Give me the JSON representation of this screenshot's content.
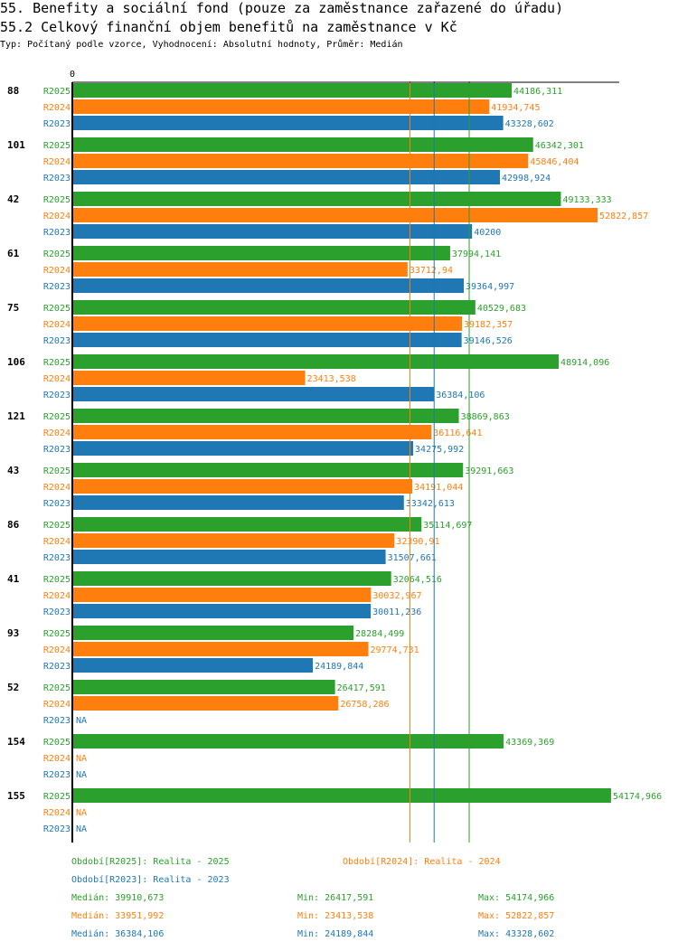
{
  "header": {
    "title": "55. Benefity a sociální fond (pouze za zaměstnance zařazené do úřadu)",
    "subtitle": "55.2 Celkový finanční objem benefitů na zaměstnance v Kč",
    "info": "Typ: Počítaný podle vzorce, Vyhodnocení: Absolutní hodnoty, Průměr: Medián"
  },
  "colors": {
    "R2025": "#2ca02c",
    "R2024": "#ff7f0e",
    "R2023": "#1f77b4"
  },
  "chart_data": {
    "type": "bar",
    "orientation": "horizontal",
    "axis_zero_label": "0",
    "xlim": [
      0,
      55000
    ],
    "series_names": [
      "R2025",
      "R2024",
      "R2023"
    ],
    "groups": [
      {
        "id": "88",
        "values": [
          44186.311,
          41934.745,
          43328.602
        ],
        "labels": [
          "44186,311",
          "41934,745",
          "43328,602"
        ]
      },
      {
        "id": "101",
        "values": [
          46342.301,
          45846.404,
          42998.924
        ],
        "labels": [
          "46342,301",
          "45846,404",
          "42998,924"
        ]
      },
      {
        "id": "42",
        "values": [
          49133.333,
          52822.857,
          40200
        ],
        "labels": [
          "49133,333",
          "52822,857",
          "40200"
        ]
      },
      {
        "id": "61",
        "values": [
          37994.141,
          33712.94,
          39364.997
        ],
        "labels": [
          "37994,141",
          "33712,94",
          "39364,997"
        ]
      },
      {
        "id": "75",
        "values": [
          40529.683,
          39182.357,
          39146.526
        ],
        "labels": [
          "40529,683",
          "39182,357",
          "39146,526"
        ]
      },
      {
        "id": "106",
        "values": [
          48914.096,
          23413.538,
          36384.106
        ],
        "labels": [
          "48914,096",
          "23413,538",
          "36384,106"
        ]
      },
      {
        "id": "121",
        "values": [
          38869.863,
          36116.641,
          34275.992
        ],
        "labels": [
          "38869,863",
          "36116,641",
          "34275,992"
        ]
      },
      {
        "id": "43",
        "values": [
          39291.663,
          34191.044,
          33342.613
        ],
        "labels": [
          "39291,663",
          "34191,044",
          "33342,613"
        ]
      },
      {
        "id": "86",
        "values": [
          35114.697,
          32390.91,
          31507.661
        ],
        "labels": [
          "35114,697",
          "32390,91",
          "31507,661"
        ]
      },
      {
        "id": "41",
        "values": [
          32064.516,
          30032.967,
          30011.236
        ],
        "labels": [
          "32064,516",
          "30032,967",
          "30011,236"
        ]
      },
      {
        "id": "93",
        "values": [
          28284.499,
          29774.731,
          24189.844
        ],
        "labels": [
          "28284,499",
          "29774,731",
          "24189,844"
        ]
      },
      {
        "id": "52",
        "values": [
          26417.591,
          26758.286,
          null
        ],
        "labels": [
          "26417,591",
          "26758,286",
          "NA"
        ]
      },
      {
        "id": "154",
        "values": [
          43369.369,
          null,
          null
        ],
        "labels": [
          "43369,369",
          "NA",
          "NA"
        ]
      },
      {
        "id": "155",
        "values": [
          54174.966,
          null,
          null
        ],
        "labels": [
          "54174,966",
          "NA",
          "NA"
        ]
      }
    ],
    "median_lines": [
      {
        "series": "R2025",
        "value": 39910.673
      },
      {
        "series": "R2024",
        "value": 33951.992
      },
      {
        "series": "R2023",
        "value": 36384.106
      }
    ]
  },
  "legend": {
    "periods": [
      {
        "series": "R2025",
        "text": "Období[R2025]: Realita - 2025"
      },
      {
        "series": "R2024",
        "text": "Období[R2024]: Realita - 2024"
      },
      {
        "series": "R2023",
        "text": "Období[R2023]: Realita - 2023"
      }
    ],
    "stats": [
      {
        "series": "R2025",
        "median": "Medián: 39910,673",
        "min": "Min: 26417,591",
        "max": "Max: 54174,966"
      },
      {
        "series": "R2024",
        "median": "Medián: 33951,992",
        "min": "Min: 23413,538",
        "max": "Max: 52822,857"
      },
      {
        "series": "R2023",
        "median": "Medián: 36384,106",
        "min": "Min: 24189,844",
        "max": "Max: 43328,602"
      }
    ]
  }
}
